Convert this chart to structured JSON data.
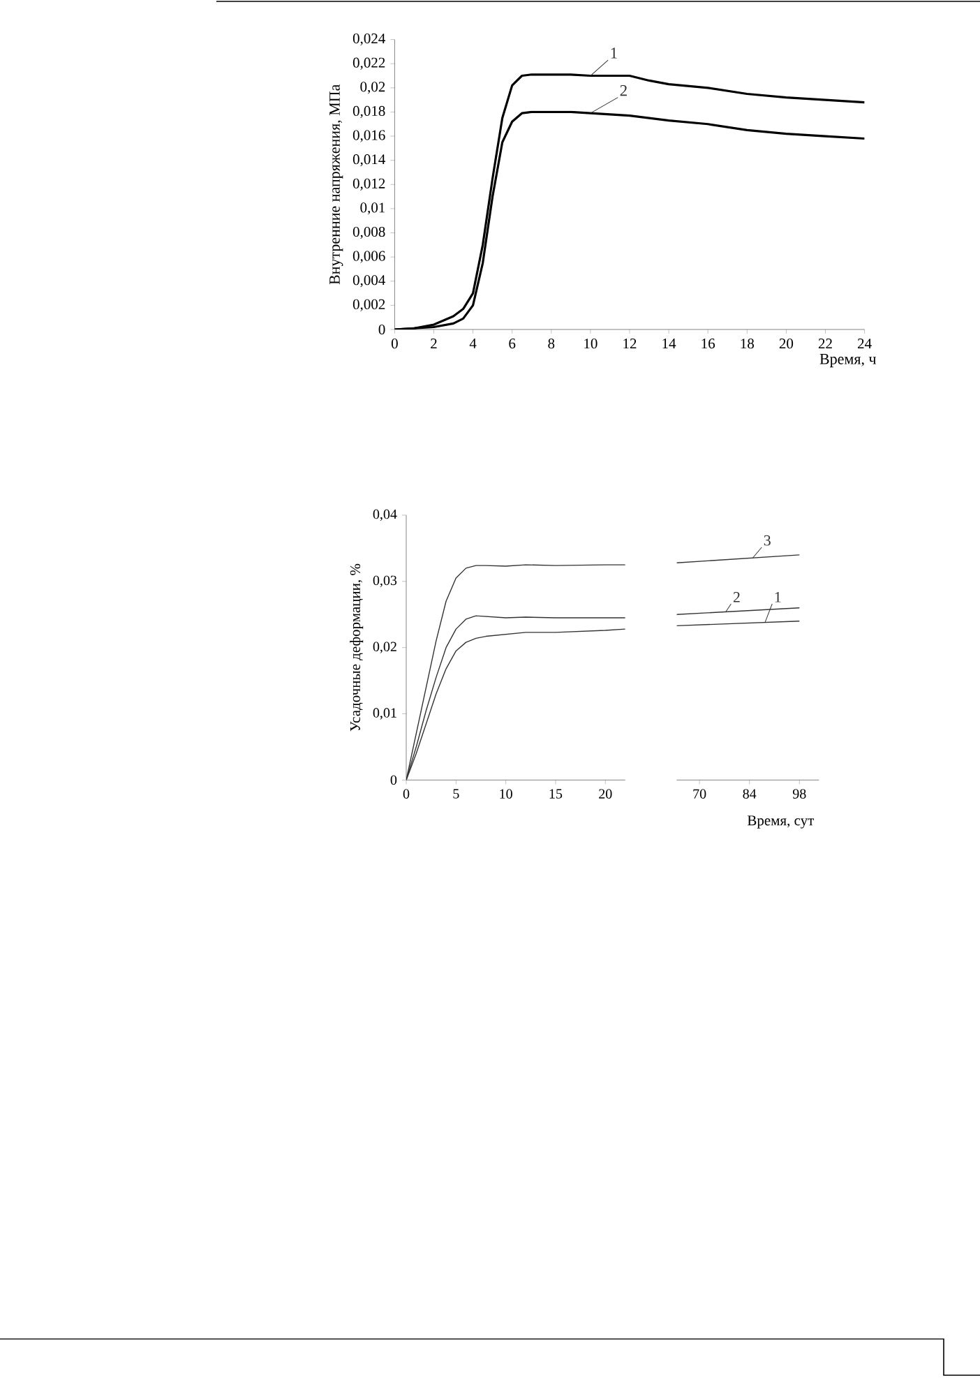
{
  "chart_data": [
    {
      "type": "line",
      "ylabel": "Внутренние напряжения, МПа",
      "xlabel": "Время, ч",
      "xlim": [
        0,
        24
      ],
      "ylim": [
        0,
        0.024
      ],
      "xticks": [
        0,
        2,
        4,
        6,
        8,
        10,
        12,
        14,
        16,
        18,
        20,
        22,
        24
      ],
      "yticks": [
        0,
        {
          "value": 0.002,
          "label": "0,002"
        },
        {
          "value": 0.004,
          "label": "0,004"
        },
        {
          "value": 0.006,
          "label": "0,006"
        },
        {
          "value": 0.008,
          "label": "0,008"
        },
        {
          "value": 0.01,
          "label": "0,01"
        },
        {
          "value": 0.012,
          "label": "0,012"
        },
        {
          "value": 0.014,
          "label": "0,014"
        },
        {
          "value": 0.016,
          "label": "0,016"
        },
        {
          "value": 0.018,
          "label": "0,018"
        },
        {
          "value": 0.02,
          "label": "0,02"
        },
        {
          "value": 0.022,
          "label": "0,022"
        },
        {
          "value": 0.024,
          "label": "0,024"
        }
      ],
      "line_style": "solid",
      "series": [
        {
          "name": "1",
          "color": "#000000",
          "x": [
            0,
            1,
            2,
            3,
            3.5,
            4,
            4.5,
            5,
            5.5,
            6,
            6.5,
            7,
            8,
            9,
            10,
            11,
            12,
            13,
            14,
            16,
            18,
            20,
            22,
            24
          ],
          "values": [
            0,
            0.0001,
            0.0004,
            0.0011,
            0.0017,
            0.003,
            0.007,
            0.0125,
            0.0175,
            0.0202,
            0.021,
            0.0211,
            0.0211,
            0.0211,
            0.021,
            0.021,
            0.021,
            0.0206,
            0.0203,
            0.02,
            0.0195,
            0.0192,
            0.019,
            0.0188
          ]
        },
        {
          "name": "2",
          "color": "#000000",
          "x": [
            0,
            1,
            2,
            3,
            3.5,
            4,
            4.5,
            5,
            5.5,
            6,
            6.5,
            7,
            8,
            9,
            10,
            11,
            12,
            14,
            16,
            18,
            20,
            22,
            24
          ],
          "values": [
            0,
            0.0001,
            0.0002,
            0.0005,
            0.0009,
            0.002,
            0.0055,
            0.011,
            0.0155,
            0.0172,
            0.0179,
            0.018,
            0.018,
            0.018,
            0.0179,
            0.0178,
            0.0177,
            0.0173,
            0.017,
            0.0165,
            0.0162,
            0.016,
            0.0158
          ]
        }
      ]
    },
    {
      "type": "line",
      "ylabel": "Усадочные деформации, %",
      "xlim": [
        0,
        22
      ],
      "ylim": [
        0,
        0.04
      ],
      "xticks": [
        0,
        5,
        10,
        15,
        20
      ],
      "yticks": [
        0,
        {
          "value": 0.01,
          "label": "0,01"
        },
        {
          "value": 0.02,
          "label": "0,02"
        },
        {
          "value": 0.03,
          "label": "0,03"
        },
        {
          "value": 0.04,
          "label": "0,04"
        }
      ],
      "line_style": "solid",
      "series": [
        {
          "color": "#333333",
          "x": [
            0,
            1,
            2,
            3,
            4,
            5,
            6,
            7,
            8,
            10,
            12,
            15,
            20,
            22
          ],
          "values": [
            0,
            0.004,
            0.0085,
            0.013,
            0.0168,
            0.0195,
            0.0208,
            0.0214,
            0.0217,
            0.022,
            0.0223,
            0.0223,
            0.0226,
            0.0228
          ]
        },
        {
          "color": "#333333",
          "x": [
            0,
            1,
            2,
            3,
            4,
            5,
            6,
            7,
            8,
            10,
            12,
            15,
            20,
            22
          ],
          "values": [
            0,
            0.005,
            0.0105,
            0.0155,
            0.02,
            0.0228,
            0.0243,
            0.0248,
            0.0247,
            0.0245,
            0.0246,
            0.0245,
            0.0245,
            0.0245
          ]
        },
        {
          "color": "#333333",
          "x": [
            0,
            1,
            2,
            3,
            4,
            5,
            6,
            7,
            8,
            10,
            12,
            15,
            20,
            22
          ],
          "values": [
            0,
            0.007,
            0.014,
            0.021,
            0.027,
            0.0305,
            0.032,
            0.0324,
            0.0324,
            0.0323,
            0.0325,
            0.0324,
            0.0325,
            0.0325
          ]
        }
      ]
    },
    {
      "type": "line",
      "xlabel": "Время, сут",
      "xlim": [
        63.6,
        103.5
      ],
      "ylim": [
        0,
        0.04
      ],
      "xticks": [
        70,
        84,
        98
      ],
      "tick_labels": "x",
      "line_style": "solid",
      "series": [
        {
          "name": "1",
          "color": "#333333",
          "x": [
            63.6,
            98
          ],
          "values": [
            0.0233,
            0.024
          ]
        },
        {
          "name": "2",
          "color": "#333333",
          "x": [
            63.6,
            98
          ],
          "values": [
            0.025,
            0.026
          ]
        },
        {
          "name": "3",
          "color": "#333333",
          "x": [
            63.6,
            98
          ],
          "values": [
            0.0328,
            0.034
          ]
        }
      ]
    }
  ]
}
